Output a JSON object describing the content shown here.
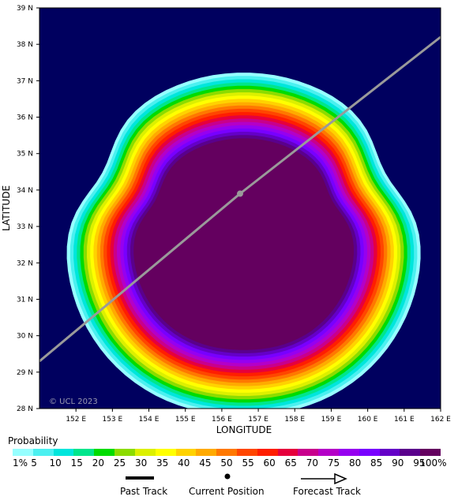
{
  "map": {
    "watermark": "© UCL 2023",
    "xlabel": "LONGITUDE",
    "ylabel": "LATITUDE",
    "lon_ticks": [
      "152 E",
      "153 E",
      "154 E",
      "155 E",
      "156 E",
      "157 E",
      "158 E",
      "159 E",
      "160 E",
      "161 E",
      "162 E"
    ],
    "lat_ticks": [
      "39 N",
      "38 N",
      "37 N",
      "36 N",
      "35 N",
      "34 N",
      "33 N",
      "32 N",
      "31 N",
      "30 N",
      "29 N",
      "28 N"
    ],
    "lon_range": [
      151,
      162
    ],
    "lat_range": [
      28,
      39
    ],
    "ocean_color": "#00005f",
    "current_position": {
      "lon": 156.5,
      "lat": 33.9
    },
    "forecast_track": [
      {
        "lon": 156.5,
        "lat": 33.9
      },
      {
        "lon": 162.0,
        "lat": 38.2
      }
    ],
    "past_track": [
      {
        "lon": 151.0,
        "lat": 29.3
      },
      {
        "lon": 156.5,
        "lat": 33.9
      }
    ]
  },
  "legend": {
    "title": "Probability",
    "labels": [
      "1%",
      "5",
      "10",
      "15",
      "20",
      "25",
      "30",
      "35",
      "40",
      "45",
      "50",
      "55",
      "60",
      "65",
      "70",
      "75",
      "80",
      "85",
      "90",
      "95",
      "100%"
    ],
    "colors": [
      "#96ffff",
      "#4bf0f0",
      "#00e6dc",
      "#00e68c",
      "#00dc00",
      "#8cdc00",
      "#dcf000",
      "#ffff00",
      "#ffd200",
      "#ffaa00",
      "#ff7800",
      "#ff4600",
      "#ff1e00",
      "#e6003c",
      "#c8008c",
      "#b400c8",
      "#9600f0",
      "#7800ff",
      "#6400c8",
      "#5a008c",
      "#64005f"
    ]
  },
  "key": {
    "past_track": "Past Track",
    "current_position": "Current Position",
    "forecast_track": "Forecast Track"
  }
}
